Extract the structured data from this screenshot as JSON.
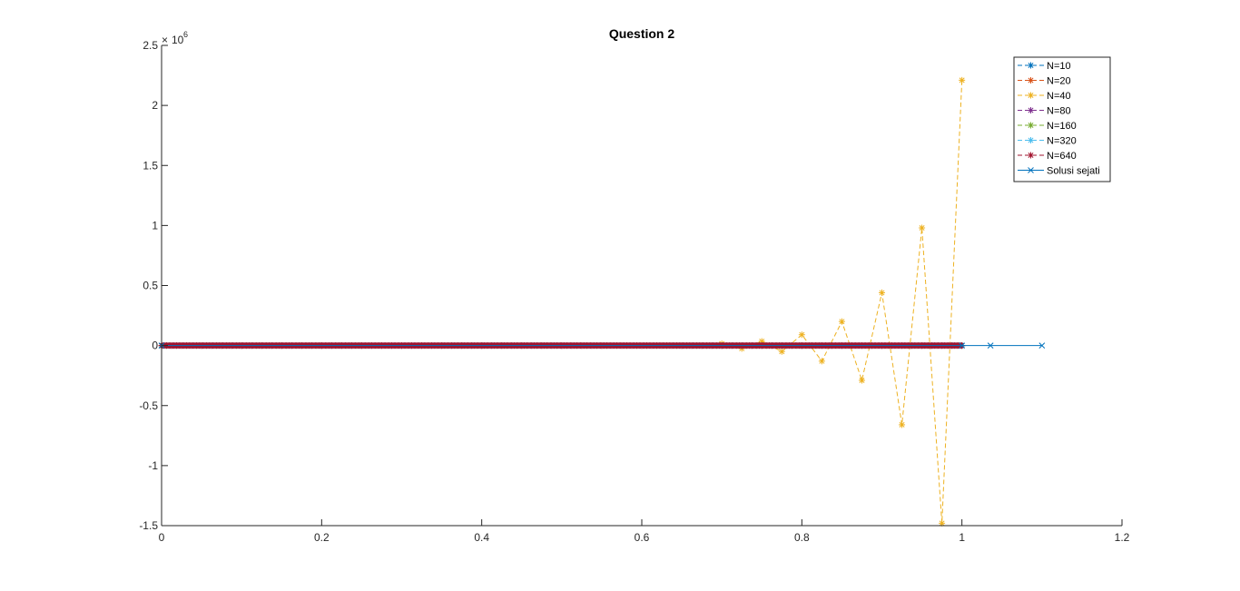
{
  "chart_data": {
    "type": "line",
    "title": "Question 2",
    "xlabel": "",
    "ylabel": "",
    "xlim": [
      0,
      1.2
    ],
    "ylim": [
      -1500000,
      2500000
    ],
    "y_exponent_label": "10",
    "y_exponent_power": "6",
    "grid": false,
    "legend_placement": "top-right",
    "x_ticks": [
      0,
      0.2,
      0.4,
      0.6,
      0.8,
      1,
      1.2
    ],
    "x_tick_labels": [
      "0",
      "0.2",
      "0.4",
      "0.6",
      "0.8",
      "1",
      "1.2"
    ],
    "y_ticks": [
      -1500000,
      -1000000,
      -500000,
      0,
      500000,
      1000000,
      1500000,
      2000000,
      2500000
    ],
    "y_tick_labels": [
      "-1.5",
      "-1",
      "-0.5",
      "0",
      "0.5",
      "1",
      "1.5",
      "2",
      "2.5"
    ],
    "series": [
      {
        "name": "N=10",
        "color": "#0072BD",
        "marker": "*",
        "dashed": true,
        "n": 10,
        "x_end": 1,
        "y": "zero"
      },
      {
        "name": "N=20",
        "color": "#D95319",
        "marker": "*",
        "dashed": true,
        "n": 20,
        "x_end": 1,
        "y": "zero"
      },
      {
        "name": "N=40",
        "color": "#EDB120",
        "marker": "*",
        "dashed": true,
        "n": 40,
        "x_end": 1,
        "tail_x": [
          0.7,
          0.725,
          0.75,
          0.775,
          0.8,
          0.825,
          0.85,
          0.875,
          0.9,
          0.925,
          0.95,
          0.975,
          1.0
        ],
        "tail_y": [
          15000,
          -25000,
          35000,
          -50000,
          90000,
          -130000,
          200000,
          -290000,
          440000,
          -660000,
          980000,
          -1480000,
          2210000
        ]
      },
      {
        "name": "N=80",
        "color": "#7E2F8E",
        "marker": "*",
        "dashed": true,
        "n": 80,
        "x_end": 1,
        "y": "zero"
      },
      {
        "name": "N=160",
        "color": "#77AC30",
        "marker": "*",
        "dashed": true,
        "n": 160,
        "x_end": 1,
        "y": "zero"
      },
      {
        "name": "N=320",
        "color": "#4DBEEE",
        "marker": "*",
        "dashed": true,
        "n": 320,
        "x_end": 1,
        "y": "zero"
      },
      {
        "name": "N=640",
        "color": "#A2142F",
        "marker": "*",
        "dashed": true,
        "n": 640,
        "x_end": 1,
        "y": "zero"
      },
      {
        "name": "Solusi sejati",
        "color": "#0072BD",
        "marker": "x",
        "dashed": false,
        "x": [
          0,
          1.0,
          1.0357,
          1.1
        ],
        "values": [
          0,
          0,
          0,
          0
        ]
      }
    ]
  }
}
